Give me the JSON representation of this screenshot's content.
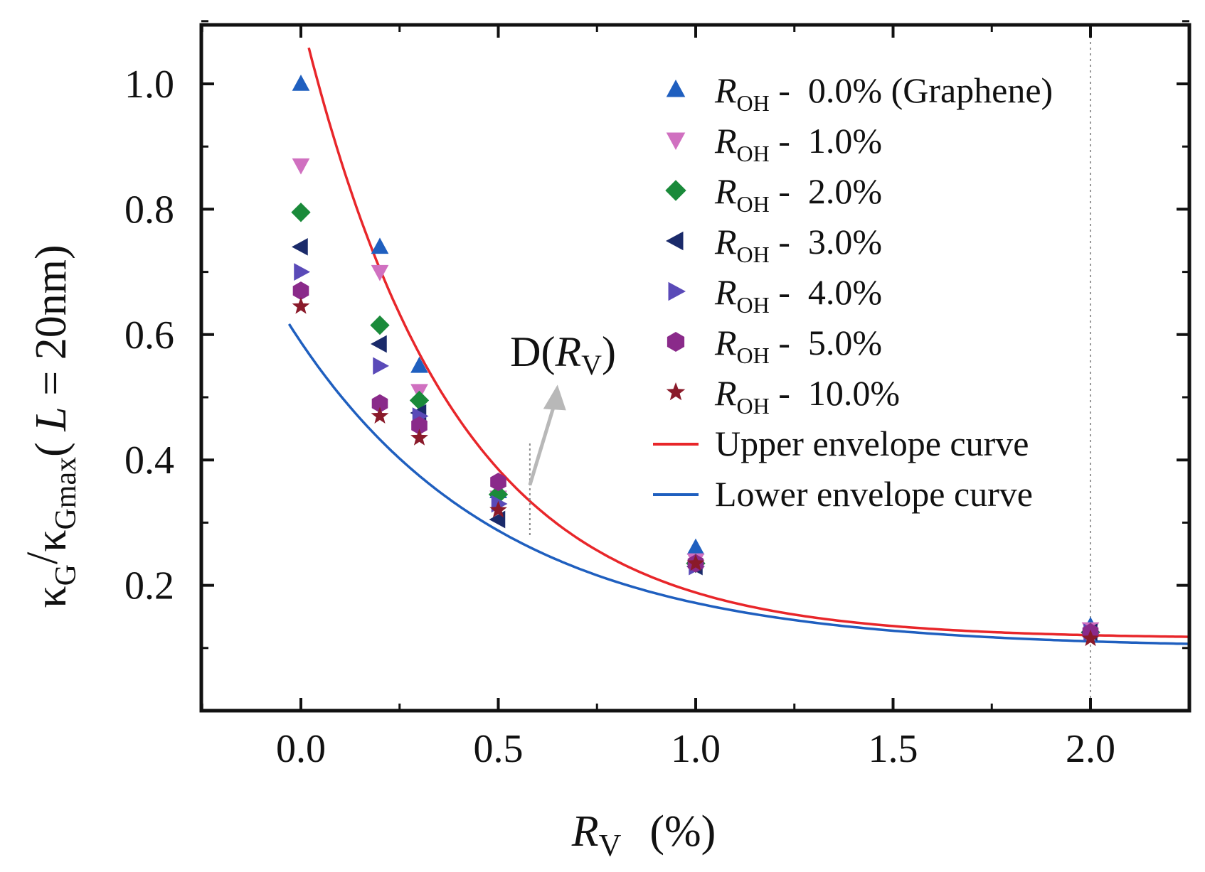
{
  "chart_data": {
    "type": "scatter",
    "xlabel": "R_V (%)",
    "xlabel_parts": {
      "var": "R",
      "sub": "V",
      "unit": "(%)"
    },
    "ylabel": "κ_G / κ_Gmax ( L = 20nm)",
    "ylabel_parts": {
      "k1": "κ",
      "s1": "G",
      "slash": "/",
      "k2": "κ",
      "s2": "Gmax",
      "open": "( ",
      "L": "L",
      "eq": " = 20nm)"
    },
    "xlim": [
      -0.25,
      2.25
    ],
    "ylim": [
      0.0,
      1.1
    ],
    "xticks": [
      0.0,
      0.5,
      1.0,
      1.5,
      2.0
    ],
    "xtick_labels": [
      "0.0",
      "0.5",
      "1.0",
      "1.5",
      "2.0"
    ],
    "yticks": [
      0.2,
      0.4,
      0.6,
      0.8,
      1.0
    ],
    "ytick_labels": [
      "0.2",
      "0.4",
      "0.6",
      "0.8",
      "1.0"
    ],
    "vertical_reference_line_x": 2.0,
    "series": [
      {
        "name": "R_OH - 0.0% (Graphene)",
        "label_prefix": "R",
        "label_sub": "OH",
        "label_rest": " -  0.0% (Graphene)",
        "marker": "triangle-up",
        "color": "#1f5fbf",
        "x": [
          0.0,
          0.2,
          0.3,
          0.5,
          1.0,
          2.0
        ],
        "y": [
          1.0,
          0.74,
          0.55,
          0.35,
          0.26,
          0.135
        ]
      },
      {
        "name": "R_OH - 1.0%",
        "label_prefix": "R",
        "label_sub": "OH",
        "label_rest": " -  1.0%",
        "marker": "triangle-down",
        "color": "#d070c0",
        "x": [
          0.0,
          0.2,
          0.3,
          0.5,
          1.0,
          2.0
        ],
        "y": [
          0.87,
          0.7,
          0.51,
          0.34,
          0.24,
          0.13
        ]
      },
      {
        "name": "R_OH - 2.0%",
        "label_prefix": "R",
        "label_sub": "OH",
        "label_rest": " -  2.0%",
        "marker": "diamond",
        "color": "#1a8a3a",
        "x": [
          0.0,
          0.2,
          0.3,
          0.5,
          1.0,
          2.0
        ],
        "y": [
          0.795,
          0.615,
          0.495,
          0.345,
          0.235,
          0.125
        ]
      },
      {
        "name": "R_OH - 3.0%",
        "label_prefix": "R",
        "label_sub": "OH",
        "label_rest": " -  3.0%",
        "marker": "triangle-left",
        "color": "#1a2a6a",
        "x": [
          0.0,
          0.2,
          0.3,
          0.5,
          1.0,
          2.0
        ],
        "y": [
          0.74,
          0.585,
          0.475,
          0.305,
          0.23,
          0.125
        ]
      },
      {
        "name": "R_OH - 4.0%",
        "label_prefix": "R",
        "label_sub": "OH",
        "label_rest": " -  4.0%",
        "marker": "triangle-right",
        "color": "#5a4ab8",
        "x": [
          0.0,
          0.2,
          0.3,
          0.5,
          1.0,
          2.0
        ],
        "y": [
          0.7,
          0.55,
          0.47,
          0.33,
          0.23,
          0.125
        ]
      },
      {
        "name": "R_OH - 5.0%",
        "label_prefix": "R",
        "label_sub": "OH",
        "label_rest": " -  5.0%",
        "marker": "hexagon",
        "color": "#8a2a8a",
        "x": [
          0.0,
          0.2,
          0.3,
          0.5,
          1.0,
          2.0
        ],
        "y": [
          0.67,
          0.49,
          0.455,
          0.365,
          0.235,
          0.125
        ]
      },
      {
        "name": "R_OH - 10.0%",
        "label_prefix": "R",
        "label_sub": "OH",
        "label_rest": " -  10.0%",
        "marker": "star",
        "color": "#8a1a2a",
        "x": [
          0.0,
          0.2,
          0.3,
          0.5,
          1.0,
          2.0
        ],
        "y": [
          0.645,
          0.47,
          0.435,
          0.32,
          0.235,
          0.115
        ]
      }
    ],
    "curves": [
      {
        "name": "Upper envelope curve",
        "color": "#e8262a",
        "model": "exp_decay",
        "A": 0.993,
        "tau": 0.384,
        "c": 0.115,
        "x_start": 0.02,
        "x_end": 2.25
      },
      {
        "name": "Lower envelope curve",
        "color": "#1f5fbf",
        "model": "exp_decay",
        "A": 0.488,
        "tau": 0.522,
        "c": 0.1,
        "x_start": -0.03,
        "x_end": 2.25
      }
    ],
    "annotation": {
      "text_main": "D(",
      "text_var": "R",
      "text_sub": "V",
      "text_close": ")",
      "arrow_from": [
        0.58,
        0.36
      ],
      "arrow_to": [
        0.65,
        0.52
      ],
      "guide_x": 0.58,
      "guide_y": [
        0.28,
        0.43
      ],
      "text_anchor": [
        0.53,
        0.55
      ]
    },
    "legend_location": "top-right",
    "grid": false
  }
}
